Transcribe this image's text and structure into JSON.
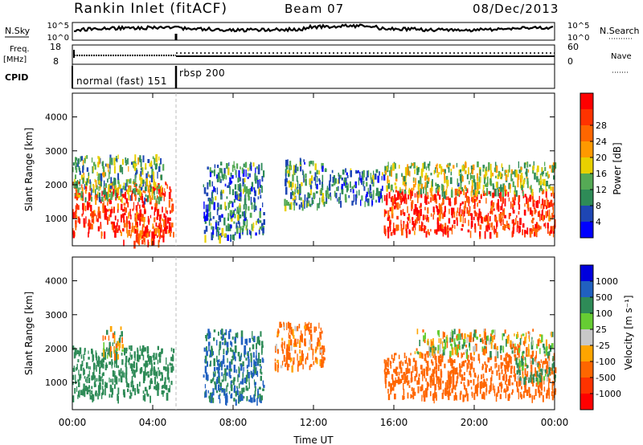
{
  "header": {
    "title": "Rankin Inlet (fitACF)",
    "beam": "Beam 07",
    "date": "08/Dec/2013"
  },
  "status_panels": {
    "nsky_label": "N.Sky",
    "nsearch_label": "N.Search",
    "freq_label_line1": "Freq.",
    "freq_label_line2": "[MHz]",
    "nave_label": "Nave",
    "cpid_label": "CPID",
    "noise_ticks": [
      "10^5",
      "10^0"
    ],
    "freq_ticks": [
      "18",
      "8"
    ],
    "nave_ticks": [
      "60",
      "0"
    ],
    "modes": [
      {
        "label": "normal (fast) 151",
        "start_hour": 0,
        "end_hour": 5.1
      },
      {
        "label": "rbsp 200",
        "start_hour": 5.1,
        "end_hour": 24
      }
    ]
  },
  "colors": {
    "power_scale": [
      "#0000ff",
      "#1e46b4",
      "#2e8b57",
      "#55aa55",
      "#e8d000",
      "#ff9900",
      "#ff6600",
      "#ff3300",
      "#ff0000"
    ],
    "velocity_scale": [
      "#ff0000",
      "#ff3300",
      "#ff6600",
      "#ffa500",
      "#c8c8c8",
      "#66cc33",
      "#2e8b57",
      "#2060c0",
      "#0000dd"
    ]
  },
  "chart_data": [
    {
      "type": "heatmap",
      "name": "power",
      "xlabel": "",
      "ylabel": "Slant Range [km]",
      "xlim": [
        0,
        24
      ],
      "ylim": [
        200,
        4700
      ],
      "yticks": [
        "1000",
        "2000",
        "3000",
        "4000"
      ],
      "colorbar": {
        "label": "Power [dB]",
        "ticks": [
          "4",
          "8",
          "12",
          "16",
          "20",
          "24",
          "28"
        ],
        "range": [
          0,
          32
        ]
      },
      "regions": [
        {
          "t0": 0.0,
          "t1": 5.0,
          "r0": 600,
          "r1": 2100,
          "value": 27
        },
        {
          "t0": 0.0,
          "t1": 4.5,
          "r0": 1600,
          "r1": 2900,
          "value": 12
        },
        {
          "t0": 2.5,
          "t1": 4.5,
          "r0": 300,
          "r1": 700,
          "value": 26
        },
        {
          "t0": 6.5,
          "t1": 9.5,
          "r0": 500,
          "r1": 2700,
          "value": 8
        },
        {
          "t0": 10.5,
          "t1": 12.5,
          "r0": 1400,
          "r1": 2800,
          "value": 10
        },
        {
          "t0": 12.5,
          "t1": 15.5,
          "r0": 1500,
          "r1": 2500,
          "value": 8
        },
        {
          "t0": 15.5,
          "t1": 24.0,
          "r0": 600,
          "r1": 1900,
          "value": 28
        },
        {
          "t0": 15.5,
          "t1": 24.0,
          "r0": 1800,
          "r1": 2700,
          "value": 14
        }
      ]
    },
    {
      "type": "heatmap",
      "name": "velocity",
      "xlabel": "Time UT",
      "ylabel": "Slant Range [km]",
      "xlim": [
        0,
        24
      ],
      "ylim": [
        200,
        4700
      ],
      "xticks": [
        "00:00",
        "04:00",
        "08:00",
        "12:00",
        "16:00",
        "20:00",
        "00:00"
      ],
      "yticks": [
        "1000",
        "2000",
        "3000",
        "4000"
      ],
      "colorbar": {
        "label": "Velocity [m s⁻¹]",
        "ticks": [
          "1000",
          "500",
          "100",
          "25",
          "-25",
          "-100",
          "-500",
          "-1000"
        ]
      },
      "regions": [
        {
          "t0": 0.0,
          "t1": 5.0,
          "r0": 600,
          "r1": 2100,
          "value": 300
        },
        {
          "t0": 1.5,
          "t1": 2.5,
          "r0": 1800,
          "r1": 2700,
          "value": 0
        },
        {
          "t0": 6.5,
          "t1": 9.5,
          "r0": 500,
          "r1": 2600,
          "value": 500
        },
        {
          "t0": 10.0,
          "t1": 12.5,
          "r0": 1500,
          "r1": 2800,
          "value": -200
        },
        {
          "t0": 15.5,
          "t1": 24.0,
          "r0": 600,
          "r1": 1900,
          "value": -300
        },
        {
          "t0": 17.0,
          "t1": 24.0,
          "r0": 1900,
          "r1": 2600,
          "value": 0
        },
        {
          "t0": 22.0,
          "t1": 24.0,
          "r0": 1100,
          "r1": 1800,
          "value": 150
        }
      ]
    }
  ]
}
